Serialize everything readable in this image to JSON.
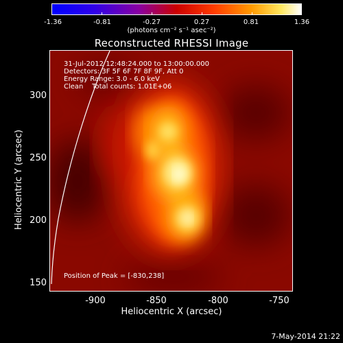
{
  "colorbar": {
    "ticks": [
      "-1.36",
      "-0.81",
      "-0.27",
      "0.27",
      "0.81",
      "1.36"
    ],
    "units": "(photons cm⁻² s⁻¹ asec⁻²)"
  },
  "title": "Reconstructed RHESSI Image",
  "info": {
    "time": "31-Jul-2012 12:48:24.000 to 13:00:00.000",
    "detectors": "Detectors: 3F 5F 6F 7F 8F 9F, Att 0",
    "energy": "Energy Range: 3.0 - 6.0 keV",
    "clean": "Clean    Total counts: 1.01E+06",
    "peak": "Position of Peak = [-830,238]"
  },
  "axes": {
    "y_ticks": [
      "300",
      "250",
      "200",
      "150"
    ],
    "x_ticks": [
      "-900",
      "-850",
      "-800",
      "-750"
    ],
    "xlabel": "Heliocentric X (arcsec)",
    "ylabel": "Heliocentric Y (arcsec)"
  },
  "datestamp": "7-May-2014 21:22",
  "colors": {
    "background": "#000000",
    "frame": "#ffffff"
  }
}
